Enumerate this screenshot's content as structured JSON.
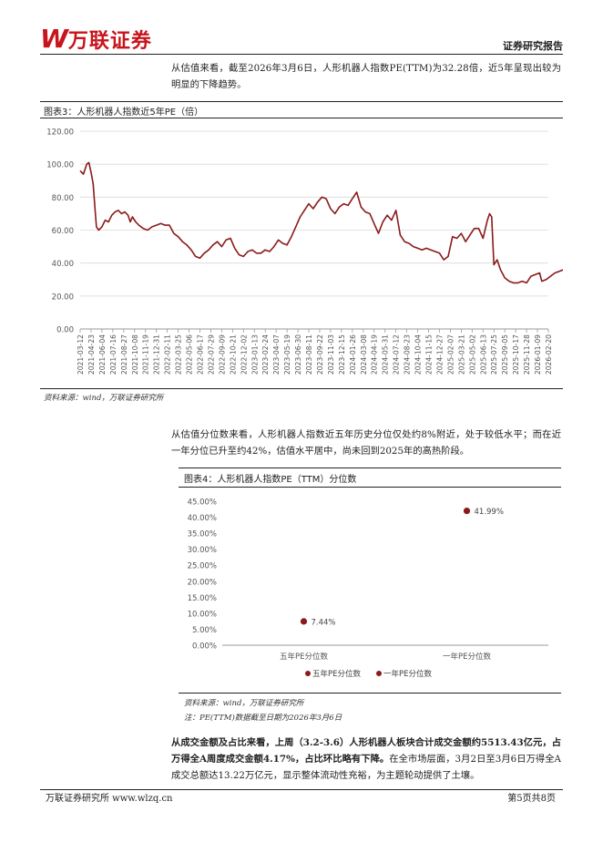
{
  "header": {
    "logo_mark": "W",
    "logo_text": "万联证券",
    "report_type": "证券研究报告"
  },
  "para1": "从估值来看，截至2026年3月6日，人形机器人指数PE(TTM)为32.28倍，近5年呈现出较为明显的下降趋势。",
  "figure3": {
    "title": "图表3：人形机器人指数近5年PE（倍）",
    "source": "资料来源：wind，万联证券研究所"
  },
  "para2": "从估值分位数来看，人形机器人指数近五年历史分位仅处约8%附近，处于较低水平；而在近一年分位已升至约42%，估值水平居中，尚未回到2025年的高热阶段。",
  "figure4": {
    "title": "图表4：人形机器人指数PE（TTM）分位数",
    "source": "资料来源：wind，万联证券研究所",
    "note": "注：PE(TTM)数据截至日期为2026年3月6日"
  },
  "para3": {
    "bold": "从成交金额及占比来看，上周（3.2-3.6）人形机器人板块合计成交金额约5513.43亿元，占万得全A周度成交金额4.17%，占比环比略有下降。",
    "normal": "在全市场层面，3月2日至3月6日万得全A成交总额达13.22万亿元，显示整体流动性充裕，为主题轮动提供了土壤。"
  },
  "footer": {
    "left": "万联证券研究所 www.wlzq.cn",
    "right": "第5页共8页"
  },
  "colors": {
    "brand": "#c8141c",
    "series": "#8b1a1a"
  },
  "chart_data": [
    {
      "type": "line",
      "ylim": [
        0,
        120
      ],
      "yticks": [
        "0.00",
        "20.00",
        "40.00",
        "60.00",
        "80.00",
        "100.00",
        "120.00"
      ],
      "grid": true,
      "x_ticks": [
        "2021-03-12",
        "2021-04-23",
        "2021-06-04",
        "2021-07-16",
        "2021-08-27",
        "2021-10-08",
        "2021-11-19",
        "2021-12-31",
        "2022-02-11",
        "2022-03-25",
        "2022-05-06",
        "2022-06-17",
        "2022-07-29",
        "2022-09-09",
        "2022-10-21",
        "2022-12-02",
        "2023-01-13",
        "2023-02-24",
        "2023-04-07",
        "2023-05-19",
        "2023-06-30",
        "2023-08-11",
        "2023-09-22",
        "2023-11-03",
        "2023-12-15",
        "2024-01-26",
        "2024-03-08",
        "2024-04-19",
        "2024-05-31",
        "2024-07-12",
        "2024-08-23",
        "2024-10-04",
        "2024-11-15",
        "2024-12-27",
        "2025-02-07",
        "2025-03-21",
        "2025-05-02",
        "2025-06-13",
        "2025-07-25",
        "2025-09-05",
        "2025-10-17",
        "2025-11-28",
        "2026-01-09",
        "2026-02-20"
      ],
      "series": [
        {
          "values": [
            [
              0,
              96
            ],
            [
              0.3,
              94
            ],
            [
              0.6,
              100
            ],
            [
              0.8,
              101
            ],
            [
              1.0,
              95
            ],
            [
              1.2,
              88
            ],
            [
              1.4,
              70
            ],
            [
              1.5,
              62
            ],
            [
              1.7,
              60
            ],
            [
              2.0,
              62
            ],
            [
              2.3,
              66
            ],
            [
              2.6,
              65
            ],
            [
              2.9,
              69
            ],
            [
              3.2,
              71
            ],
            [
              3.5,
              72
            ],
            [
              3.8,
              70
            ],
            [
              4.1,
              71
            ],
            [
              4.4,
              69
            ],
            [
              4.6,
              65
            ],
            [
              4.8,
              68
            ],
            [
              5.1,
              65
            ],
            [
              5.4,
              63
            ],
            [
              5.8,
              61
            ],
            [
              6.2,
              60
            ],
            [
              6.6,
              62
            ],
            [
              7.0,
              63
            ],
            [
              7.4,
              64
            ],
            [
              7.8,
              63
            ],
            [
              8.2,
              63
            ],
            [
              8.6,
              58
            ],
            [
              9.0,
              56
            ],
            [
              9.4,
              53
            ],
            [
              9.8,
              51
            ],
            [
              10.2,
              48
            ],
            [
              10.6,
              44
            ],
            [
              11.0,
              43
            ],
            [
              11.4,
              46
            ],
            [
              11.8,
              48
            ],
            [
              12.2,
              51
            ],
            [
              12.6,
              53
            ],
            [
              13.0,
              50
            ],
            [
              13.4,
              54
            ],
            [
              13.8,
              55
            ],
            [
              14.2,
              49
            ],
            [
              14.6,
              45
            ],
            [
              15.0,
              44
            ],
            [
              15.4,
              47
            ],
            [
              15.8,
              48
            ],
            [
              16.2,
              46
            ],
            [
              16.6,
              46
            ],
            [
              17.0,
              48
            ],
            [
              17.4,
              47
            ],
            [
              17.8,
              50
            ],
            [
              18.2,
              54
            ],
            [
              18.6,
              52
            ],
            [
              19.0,
              51
            ],
            [
              19.4,
              56
            ],
            [
              19.8,
              62
            ],
            [
              20.2,
              68
            ],
            [
              20.6,
              72
            ],
            [
              21.0,
              76
            ],
            [
              21.4,
              73
            ],
            [
              21.8,
              77
            ],
            [
              22.2,
              80
            ],
            [
              22.6,
              79
            ],
            [
              23.0,
              73
            ],
            [
              23.4,
              70
            ],
            [
              23.8,
              74
            ],
            [
              24.2,
              76
            ],
            [
              24.6,
              75
            ],
            [
              25.0,
              79
            ],
            [
              25.4,
              83
            ],
            [
              25.8,
              74
            ],
            [
              26.2,
              71
            ],
            [
              26.6,
              70
            ],
            [
              27.0,
              64
            ],
            [
              27.4,
              58
            ],
            [
              27.8,
              65
            ],
            [
              28.2,
              69
            ],
            [
              28.6,
              66
            ],
            [
              29.0,
              72
            ],
            [
              29.4,
              57
            ],
            [
              29.8,
              53
            ],
            [
              30.2,
              52
            ],
            [
              30.6,
              50
            ],
            [
              31.0,
              49
            ],
            [
              31.4,
              48
            ],
            [
              31.8,
              49
            ],
            [
              32.2,
              48
            ],
            [
              32.6,
              47
            ],
            [
              33.0,
              46
            ],
            [
              33.4,
              42
            ],
            [
              33.8,
              44
            ],
            [
              34.2,
              56
            ],
            [
              34.6,
              55
            ],
            [
              35.0,
              58
            ],
            [
              35.4,
              53
            ],
            [
              35.8,
              57
            ],
            [
              36.2,
              61
            ],
            [
              36.6,
              61
            ],
            [
              37.0,
              55
            ],
            [
              37.4,
              66
            ],
            [
              37.6,
              70
            ],
            [
              37.8,
              68
            ],
            [
              38.0,
              39
            ],
            [
              38.3,
              42
            ],
            [
              38.6,
              36
            ],
            [
              39.0,
              31
            ],
            [
              39.4,
              29
            ],
            [
              39.8,
              28
            ],
            [
              40.2,
              28
            ],
            [
              40.6,
              29
            ],
            [
              41.0,
              28
            ],
            [
              41.4,
              32
            ],
            [
              41.8,
              33
            ],
            [
              42.2,
              34
            ],
            [
              42.4,
              29
            ],
            [
              42.8,
              30
            ],
            [
              43.2,
              32
            ],
            [
              43.6,
              34
            ],
            [
              44.0,
              35
            ],
            [
              44.4,
              36
            ],
            [
              44.8,
              33
            ],
            [
              45.2,
              34
            ],
            [
              45.6,
              32
            ],
            [
              46.0,
              33
            ],
            [
              46.4,
              34
            ],
            [
              46.8,
              32
            ],
            [
              47.2,
              33
            ],
            [
              47.6,
              32
            ],
            [
              48.0,
              33
            ],
            [
              48.4,
              32
            ]
          ]
        }
      ]
    },
    {
      "type": "scatter",
      "categories": [
        "五年PE分位数",
        "一年PE分位数"
      ],
      "ylim": [
        0,
        45
      ],
      "yticks": [
        "0.00%",
        "5.00%",
        "10.00%",
        "15.00%",
        "20.00%",
        "25.00%",
        "30.00%",
        "35.00%",
        "40.00%",
        "45.00%"
      ],
      "series": [
        {
          "name": "五年PE分位数",
          "values": [
            7.44,
            null
          ],
          "label": "7.44%"
        },
        {
          "name": "一年PE分位数",
          "values": [
            null,
            41.99
          ],
          "label": "41.99%"
        }
      ],
      "legend": "bottom",
      "grid": false
    }
  ]
}
